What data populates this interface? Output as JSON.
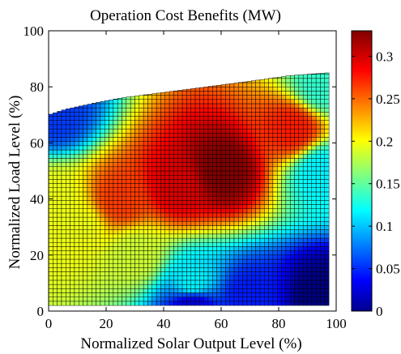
{
  "chart_data": {
    "type": "heatmap",
    "title": "Operation Cost Benefits (MW)",
    "xlabel": "Normalized Solar Output Level (%)",
    "ylabel": "Normalized Load Level (%)",
    "xlim": [
      0,
      100
    ],
    "ylim": [
      0,
      100
    ],
    "x_ticks": [
      "0",
      "20",
      "40",
      "60",
      "80",
      "100"
    ],
    "y_ticks": [
      "0",
      "20",
      "40",
      "60",
      "80",
      "100"
    ],
    "colorbar": {
      "label": "",
      "range": [
        0,
        0.33
      ],
      "ticks": [
        "0",
        "0.05",
        "0.1",
        "0.15",
        "0.2",
        "0.25",
        "0.3"
      ],
      "colormap": "jet"
    },
    "grid": {
      "x_range": [
        0,
        97
      ],
      "y_range": [
        2,
        87
      ],
      "cell_size": 1.5
    },
    "feasible_upper_boundary": [
      {
        "x": 0,
        "y": 70
      },
      {
        "x": 6,
        "y": 72
      },
      {
        "x": 15,
        "y": 74
      },
      {
        "x": 25,
        "y": 76
      },
      {
        "x": 40,
        "y": 78
      },
      {
        "x": 55,
        "y": 80
      },
      {
        "x": 70,
        "y": 82
      },
      {
        "x": 84,
        "y": 84
      },
      {
        "x": 97,
        "y": 85
      }
    ],
    "samples": [
      {
        "x": 60,
        "y": 50,
        "value": 0.33
      },
      {
        "x": 45,
        "y": 45,
        "value": 0.3
      },
      {
        "x": 25,
        "y": 40,
        "value": 0.27
      },
      {
        "x": 10,
        "y": 30,
        "value": 0.2
      },
      {
        "x": 2,
        "y": 40,
        "value": 0.2
      },
      {
        "x": 2,
        "y": 70,
        "value": 0.06
      },
      {
        "x": 30,
        "y": 20,
        "value": 0.19
      },
      {
        "x": 50,
        "y": 10,
        "value": 0.12
      },
      {
        "x": 70,
        "y": 5,
        "value": 0.05
      },
      {
        "x": 95,
        "y": 5,
        "value": 0.0
      },
      {
        "x": 95,
        "y": 50,
        "value": 0.12
      },
      {
        "x": 95,
        "y": 80,
        "value": 0.14
      },
      {
        "x": 85,
        "y": 65,
        "value": 0.28
      },
      {
        "x": 50,
        "y": 2,
        "value": 0.03
      }
    ]
  }
}
